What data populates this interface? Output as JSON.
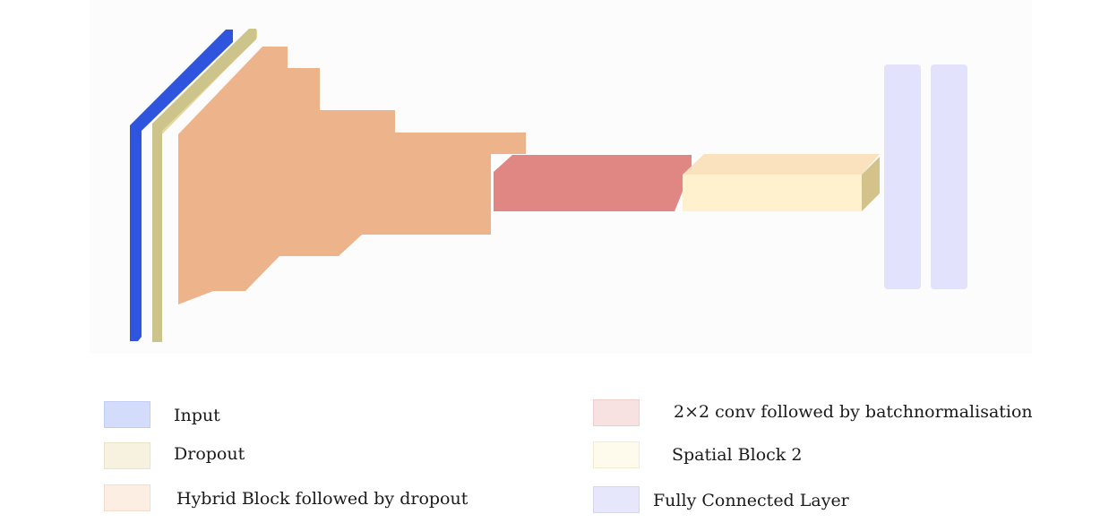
{
  "legend": [
    {
      "key": "input",
      "label": "Input",
      "swatch": "#d3dcfb",
      "border": "#c2cdf5"
    },
    {
      "key": "dropout",
      "label": "Dropout",
      "swatch": "#f6f2df",
      "border": "#e9e3c8"
    },
    {
      "key": "hybrid",
      "label": "Hybrid Block followed by dropout",
      "swatch": "#fdeee4",
      "border": "#f3dccd"
    },
    {
      "key": "conv",
      "label": "2×2 conv followed by batchnormalisation",
      "swatch": "#f8e1e1",
      "border": "#efcdcd"
    },
    {
      "key": "spatial",
      "label": "Spatial Block 2",
      "swatch": "#fefbec",
      "border": "#f1ebd2"
    },
    {
      "key": "fc",
      "label": "Fully Connected Layer",
      "swatch": "#e7e7fb",
      "border": "#d6d6f2"
    }
  ],
  "colors": {
    "input": "#2f54de",
    "dropout": "#cdc48c",
    "dropout_edge": "#e5d99a",
    "hybrid": "#edb48b",
    "conv": "#e08683",
    "spatial_front": "#fff1cd",
    "spatial_top": "#f9e2bd",
    "spatial_side": "#d3c38a",
    "fc": "#e2e2fc"
  }
}
